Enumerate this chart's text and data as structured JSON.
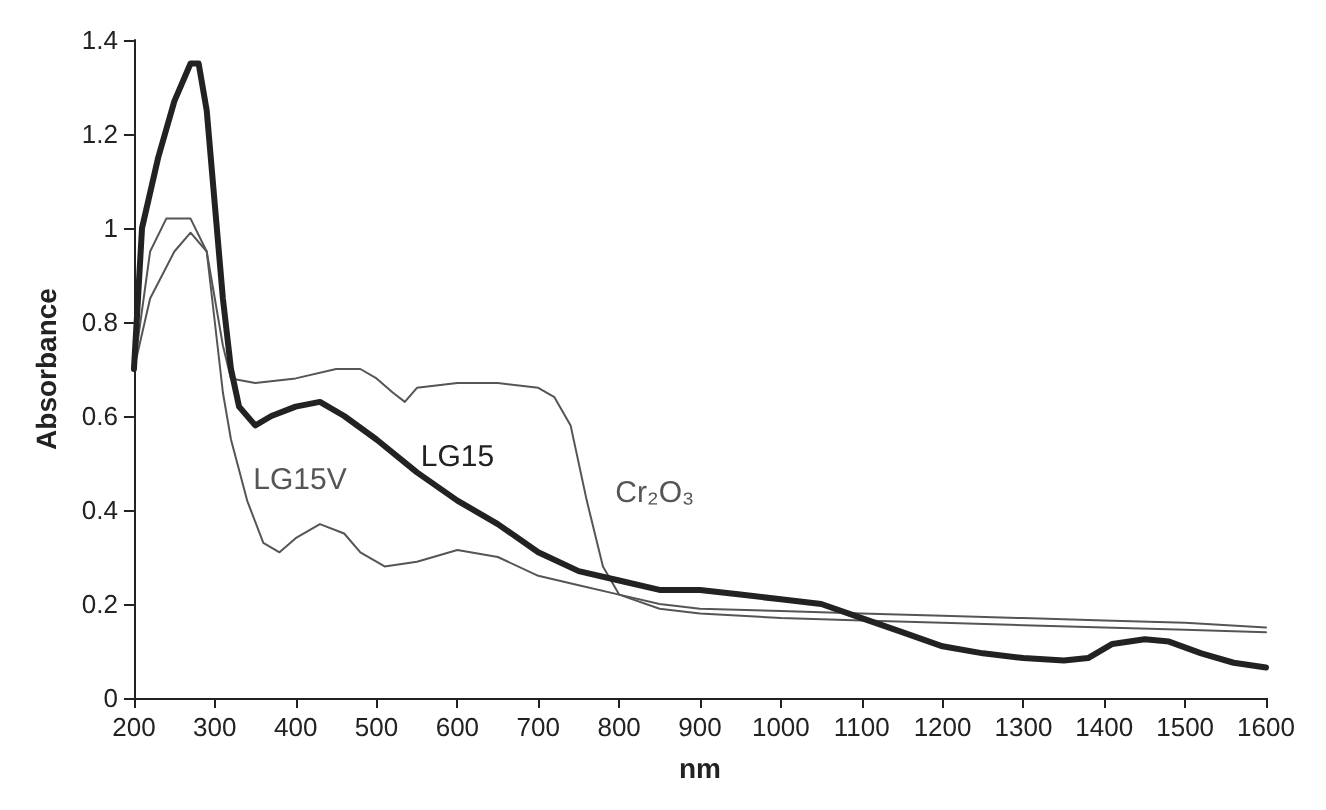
{
  "chart_data": {
    "type": "line",
    "xlabel": "nm",
    "ylabel": "Absorbance",
    "xlim": [
      200,
      1600
    ],
    "xticks": [
      200,
      300,
      400,
      500,
      600,
      700,
      800,
      900,
      1000,
      1100,
      1200,
      1300,
      1400,
      1500,
      1600
    ],
    "ylim": [
      0,
      1.4
    ],
    "yticks": [
      0,
      0.2,
      0.4,
      0.6,
      0.8,
      1,
      1.2,
      1.4
    ],
    "grid": false,
    "marker": "none",
    "line_style": "solid",
    "series": [
      {
        "name": "LG15",
        "color": "#222222",
        "x": [
          200,
          210,
          230,
          250,
          270,
          280,
          290,
          300,
          310,
          320,
          330,
          350,
          370,
          400,
          430,
          460,
          500,
          550,
          600,
          650,
          700,
          750,
          800,
          850,
          900,
          950,
          1000,
          1050,
          1100,
          1150,
          1200,
          1250,
          1300,
          1350,
          1380,
          1410,
          1450,
          1480,
          1520,
          1560,
          1600
        ],
        "values": [
          0.7,
          1.0,
          1.15,
          1.27,
          1.35,
          1.35,
          1.25,
          1.05,
          0.85,
          0.7,
          0.62,
          0.58,
          0.6,
          0.62,
          0.63,
          0.6,
          0.55,
          0.48,
          0.42,
          0.37,
          0.31,
          0.27,
          0.25,
          0.23,
          0.23,
          0.22,
          0.21,
          0.2,
          0.17,
          0.14,
          0.11,
          0.095,
          0.085,
          0.08,
          0.085,
          0.115,
          0.125,
          0.12,
          0.095,
          0.075,
          0.065
        ]
      },
      {
        "name": "Cr₂O₃",
        "color": "#555555",
        "x": [
          200,
          220,
          240,
          270,
          290,
          300,
          310,
          320,
          350,
          400,
          450,
          480,
          500,
          520,
          535,
          550,
          600,
          650,
          700,
          720,
          740,
          760,
          780,
          800,
          850,
          900,
          1000,
          1100,
          1200,
          1300,
          1400,
          1500,
          1600
        ],
        "values": [
          0.7,
          0.95,
          1.02,
          1.02,
          0.95,
          0.85,
          0.75,
          0.68,
          0.67,
          0.68,
          0.7,
          0.7,
          0.68,
          0.65,
          0.63,
          0.66,
          0.67,
          0.67,
          0.66,
          0.64,
          0.58,
          0.42,
          0.28,
          0.22,
          0.2,
          0.19,
          0.185,
          0.18,
          0.175,
          0.17,
          0.165,
          0.16,
          0.15
        ]
      },
      {
        "name": "LG15V",
        "color": "#555555",
        "x": [
          200,
          220,
          250,
          270,
          290,
          300,
          310,
          320,
          340,
          360,
          380,
          400,
          430,
          460,
          480,
          510,
          550,
          600,
          650,
          700,
          750,
          800,
          850,
          900,
          1000,
          1100,
          1200,
          1300,
          1400,
          1500,
          1600
        ],
        "values": [
          0.7,
          0.85,
          0.95,
          0.99,
          0.95,
          0.8,
          0.65,
          0.55,
          0.42,
          0.33,
          0.31,
          0.34,
          0.37,
          0.35,
          0.31,
          0.28,
          0.29,
          0.315,
          0.3,
          0.26,
          0.24,
          0.22,
          0.19,
          0.18,
          0.17,
          0.165,
          0.16,
          0.155,
          0.15,
          0.145,
          0.14
        ]
      }
    ]
  }
}
